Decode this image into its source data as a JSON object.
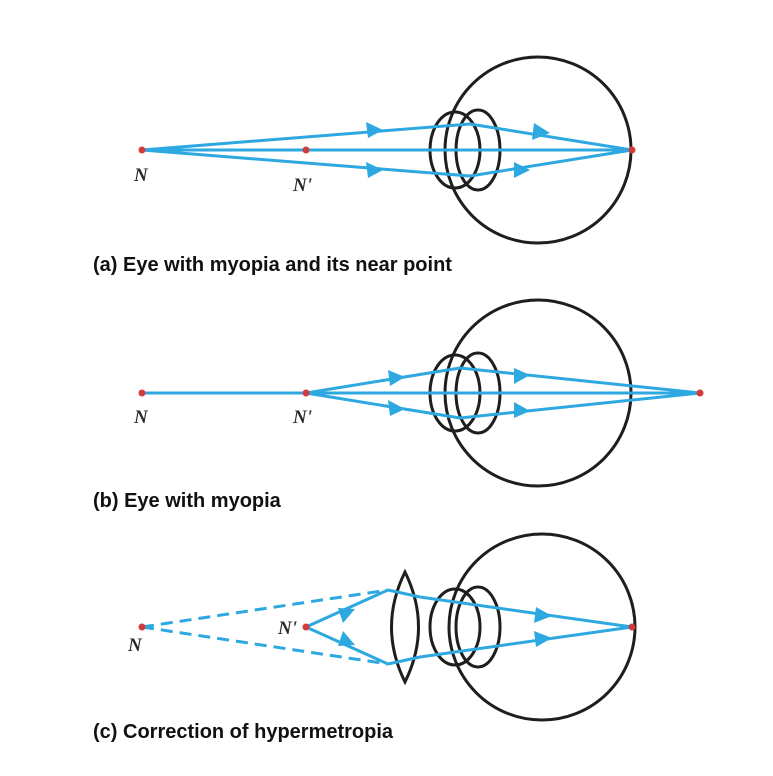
{
  "colors": {
    "ray": "#2ea8e0",
    "eye": "#1e1e1e",
    "point": "#d23b3b"
  },
  "panels": [
    {
      "caption": "(a) Eye with myopia and its near point",
      "labels": [
        "N",
        "N'"
      ]
    },
    {
      "caption": "(b) Eye with myopia",
      "labels": [
        "N",
        "N'"
      ]
    },
    {
      "caption": "(c) Correction of hypermetropia",
      "labels": [
        "N",
        "N'"
      ]
    }
  ]
}
